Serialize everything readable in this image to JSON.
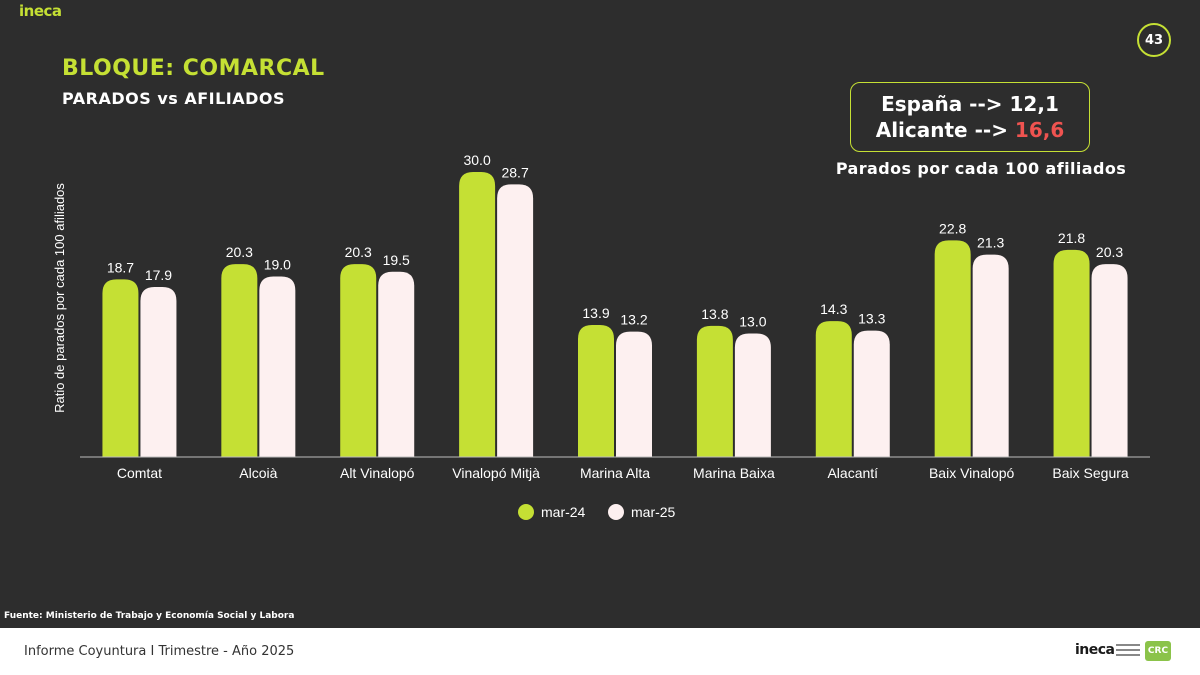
{
  "header": {
    "logo": "ineca",
    "page_number": "43",
    "title": "BLOQUE: COMARCAL",
    "subtitle": "PARADOS vs AFILIADOS"
  },
  "reference": {
    "line1_label": "España -->",
    "line1_value": "12,1",
    "line2_label": "Alicante -->",
    "line2_value": "16,6",
    "caption": "Parados por cada 100 afiliados",
    "highlight_color": "#ef5350"
  },
  "chart_data": {
    "type": "bar",
    "ylabel": "Ratio de parados por cada 100 afiliados",
    "xlabel": "",
    "ylim": [
      0,
      32
    ],
    "grid": false,
    "legend_position": "bottom-center",
    "categories": [
      "Comtat",
      "Alcoià",
      "Alt Vinalopó",
      "Vinalopó Mitjà",
      "Marina Alta",
      "Marina Baixa",
      "Alacantí",
      "Baix Vinalopó",
      "Baix Segura"
    ],
    "series": [
      {
        "name": "mar-24",
        "color": "#c5e034",
        "values": [
          18.7,
          20.3,
          20.3,
          30.0,
          13.9,
          13.8,
          14.3,
          22.8,
          21.8
        ]
      },
      {
        "name": "mar-25",
        "color": "#fdf0f0",
        "values": [
          17.9,
          19.0,
          19.5,
          28.7,
          13.2,
          13.0,
          13.3,
          21.3,
          20.3
        ]
      }
    ]
  },
  "source": "Fuente: Ministerio de Trabajo y Economía Social y Labora",
  "footer": {
    "text": "Informe Coyuntura I Trimestre - Año 2025",
    "logo": "ineca",
    "badge": "CRC"
  }
}
